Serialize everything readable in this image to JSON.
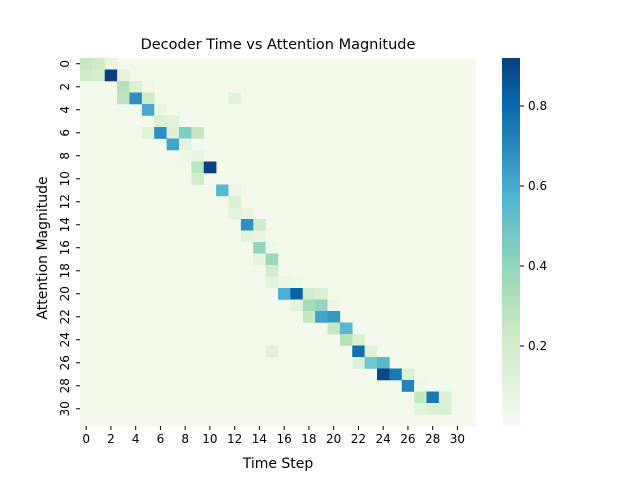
{
  "chart_data": {
    "type": "heatmap",
    "title": "Decoder Time vs Attention Magnitude",
    "xlabel": "Time Step",
    "ylabel": "Attention Magnitude",
    "rows": 32,
    "cols": 32,
    "x_tick_labels": [
      "0",
      "2",
      "4",
      "6",
      "8",
      "10",
      "12",
      "14",
      "16",
      "18",
      "20",
      "22",
      "24",
      "26",
      "28",
      "30"
    ],
    "y_tick_labels": [
      "0",
      "2",
      "4",
      "6",
      "8",
      "10",
      "12",
      "14",
      "16",
      "18",
      "20",
      "22",
      "24",
      "26",
      "28",
      "30"
    ],
    "colorbar": {
      "colormap": "GnBu",
      "vmin": 0.0,
      "vmax": 0.92,
      "tick_labels": [
        "0.2",
        "0.4",
        "0.6",
        "0.8"
      ],
      "tick_values": [
        0.2,
        0.4,
        0.6,
        0.8
      ]
    },
    "background_value": 0.02,
    "cells": [
      [
        0,
        0,
        0.25
      ],
      [
        0,
        1,
        0.22
      ],
      [
        0,
        2,
        0.08
      ],
      [
        1,
        0,
        0.22
      ],
      [
        1,
        1,
        0.18
      ],
      [
        1,
        2,
        0.92
      ],
      [
        1,
        3,
        0.1
      ],
      [
        2,
        3,
        0.3
      ],
      [
        2,
        4,
        0.15
      ],
      [
        2,
        5,
        0.05
      ],
      [
        3,
        3,
        0.28
      ],
      [
        3,
        4,
        0.68
      ],
      [
        3,
        5,
        0.22
      ],
      [
        3,
        12,
        0.12
      ],
      [
        4,
        5,
        0.6
      ],
      [
        4,
        6,
        0.06
      ],
      [
        5,
        6,
        0.15
      ],
      [
        5,
        7,
        0.12
      ],
      [
        6,
        5,
        0.12
      ],
      [
        6,
        6,
        0.68
      ],
      [
        6,
        7,
        0.15
      ],
      [
        6,
        8,
        0.45
      ],
      [
        6,
        9,
        0.25
      ],
      [
        7,
        7,
        0.62
      ],
      [
        7,
        8,
        0.1
      ],
      [
        8,
        8,
        0.05
      ],
      [
        8,
        9,
        0.08
      ],
      [
        9,
        9,
        0.28
      ],
      [
        9,
        10,
        0.92
      ],
      [
        10,
        9,
        0.2
      ],
      [
        11,
        11,
        0.55
      ],
      [
        11,
        12,
        0.06
      ],
      [
        12,
        12,
        0.15
      ],
      [
        13,
        12,
        0.1
      ],
      [
        13,
        13,
        0.08
      ],
      [
        14,
        13,
        0.68
      ],
      [
        14,
        14,
        0.22
      ],
      [
        15,
        13,
        0.1
      ],
      [
        15,
        14,
        0.08
      ],
      [
        16,
        14,
        0.4
      ],
      [
        16,
        15,
        0.05
      ],
      [
        17,
        14,
        0.1
      ],
      [
        17,
        15,
        0.38
      ],
      [
        18,
        15,
        0.2
      ],
      [
        19,
        15,
        0.1
      ],
      [
        19,
        16,
        0.06
      ],
      [
        19,
        17,
        0.05
      ],
      [
        20,
        16,
        0.58
      ],
      [
        20,
        17,
        0.82
      ],
      [
        20,
        18,
        0.2
      ],
      [
        20,
        19,
        0.15
      ],
      [
        21,
        17,
        0.1
      ],
      [
        21,
        18,
        0.35
      ],
      [
        21,
        19,
        0.4
      ],
      [
        21,
        20,
        0.06
      ],
      [
        22,
        18,
        0.25
      ],
      [
        22,
        19,
        0.62
      ],
      [
        22,
        20,
        0.65
      ],
      [
        23,
        20,
        0.25
      ],
      [
        23,
        21,
        0.55
      ],
      [
        24,
        21,
        0.3
      ],
      [
        24,
        22,
        0.15
      ],
      [
        25,
        15,
        0.12
      ],
      [
        25,
        22,
        0.78
      ],
      [
        25,
        23,
        0.12
      ],
      [
        26,
        22,
        0.15
      ],
      [
        26,
        23,
        0.48
      ],
      [
        26,
        24,
        0.55
      ],
      [
        27,
        24,
        0.9
      ],
      [
        27,
        25,
        0.75
      ],
      [
        27,
        26,
        0.15
      ],
      [
        28,
        26,
        0.72
      ],
      [
        28,
        27,
        0.05
      ],
      [
        29,
        27,
        0.25
      ],
      [
        29,
        28,
        0.75
      ],
      [
        29,
        29,
        0.15
      ],
      [
        30,
        27,
        0.1
      ],
      [
        30,
        28,
        0.15
      ],
      [
        30,
        29,
        0.15
      ]
    ]
  }
}
